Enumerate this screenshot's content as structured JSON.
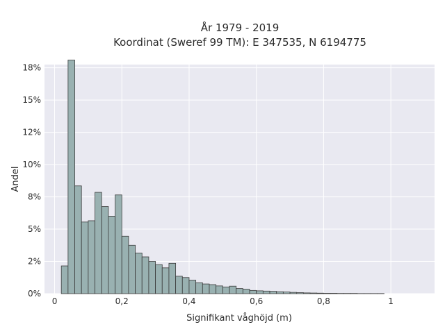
{
  "chart_data": {
    "type": "bar",
    "title_lines": [
      "År 1979 - 2019",
      "Koordinat (Sweref 99 TM): E 347535, N 6194775"
    ],
    "xlabel": "Signifikant våghöjd (m)",
    "ylabel": "Andel",
    "xlim": [
      -0.03,
      1.13
    ],
    "ylim": [
      0,
      0.1775
    ],
    "x_ticks": [
      0,
      0.2,
      0.4,
      0.6,
      0.8,
      1
    ],
    "x_tick_labels": [
      "0",
      "0,2",
      "0,4",
      "0,6",
      "0,8",
      "1"
    ],
    "y_ticks": [
      0,
      0.025,
      0.05,
      0.075,
      0.1,
      0.125,
      0.15,
      0.175
    ],
    "y_tick_labels": [
      "0%",
      "2%",
      "5%",
      "8%",
      "10%",
      "12%",
      "15%",
      "18%"
    ],
    "bin_width": 0.02,
    "bin_starts": [
      0.02,
      0.04,
      0.06,
      0.08,
      0.1,
      0.12,
      0.14,
      0.16,
      0.18,
      0.2,
      0.22,
      0.24,
      0.26,
      0.28,
      0.3,
      0.32,
      0.34,
      0.36,
      0.38,
      0.4,
      0.42,
      0.44,
      0.46,
      0.48,
      0.5,
      0.52,
      0.54,
      0.56,
      0.58,
      0.6,
      0.62,
      0.64,
      0.66,
      0.68,
      0.7,
      0.72,
      0.74,
      0.76,
      0.78,
      0.8,
      0.82,
      0.84,
      0.86,
      0.88,
      0.9,
      0.92,
      0.94,
      0.96
    ],
    "values": [
      0.0215,
      0.181,
      0.0835,
      0.0555,
      0.0565,
      0.0785,
      0.0675,
      0.06,
      0.0765,
      0.0445,
      0.0375,
      0.0315,
      0.0285,
      0.025,
      0.0225,
      0.02,
      0.0235,
      0.0135,
      0.0125,
      0.0105,
      0.0085,
      0.0075,
      0.007,
      0.006,
      0.0052,
      0.0058,
      0.004,
      0.0035,
      0.0025,
      0.0022,
      0.002,
      0.0018,
      0.0015,
      0.0013,
      0.001,
      0.0008,
      0.0006,
      0.0005,
      0.0004,
      0.0003,
      0.0003,
      0.0002,
      0.0002,
      0.0002,
      0.0001,
      0.0001,
      0.0001,
      0.0001
    ],
    "grid": true,
    "legend": "none",
    "colors": {
      "bar_fill": "#99b1b1",
      "bar_stroke": "#3b3b3b",
      "plot_background": "#e9e9f1",
      "grid": "#ffffff"
    }
  }
}
